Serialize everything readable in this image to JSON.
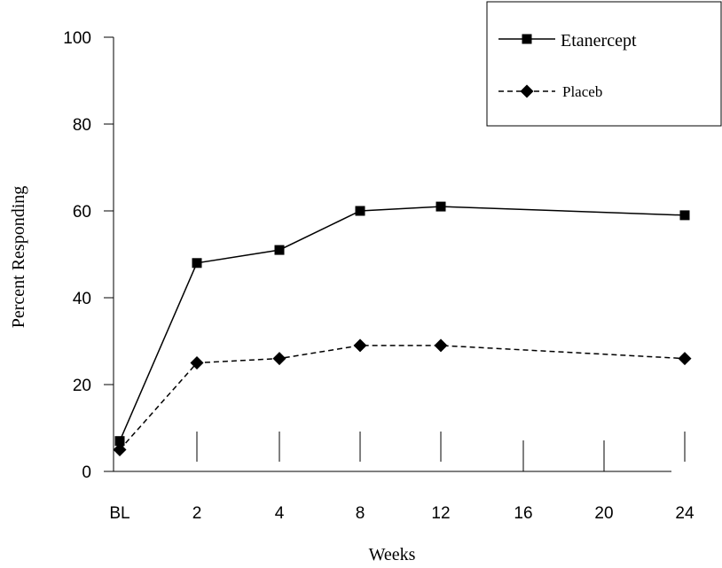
{
  "chart_data": {
    "type": "line",
    "x_tick_labels": [
      "BL",
      "2",
      "4",
      "8",
      "12",
      "16",
      "20",
      "24"
    ],
    "y_ticks": [
      0,
      20,
      40,
      60,
      80,
      100
    ],
    "ylim": [
      0,
      100
    ],
    "xlabel": "Weeks",
    "ylabel": "Percent Responding",
    "legend_position": "top-right",
    "grid": false,
    "series": [
      {
        "name": "Etanercept",
        "marker": "square",
        "line_style": "solid",
        "color": "#000000",
        "points": [
          {
            "x": "BL",
            "y": 7
          },
          {
            "x": "2",
            "y": 48
          },
          {
            "x": "4",
            "y": 51
          },
          {
            "x": "8",
            "y": 60
          },
          {
            "x": "12",
            "y": 61
          },
          {
            "x": "24",
            "y": 59
          }
        ]
      },
      {
        "name": "Placeb",
        "marker": "diamond",
        "line_style": "dashed",
        "color": "#000000",
        "points": [
          {
            "x": "BL",
            "y": 5
          },
          {
            "x": "2",
            "y": 25
          },
          {
            "x": "4",
            "y": 26
          },
          {
            "x": "8",
            "y": 29
          },
          {
            "x": "12",
            "y": 29
          },
          {
            "x": "24",
            "y": 26
          }
        ]
      }
    ]
  }
}
